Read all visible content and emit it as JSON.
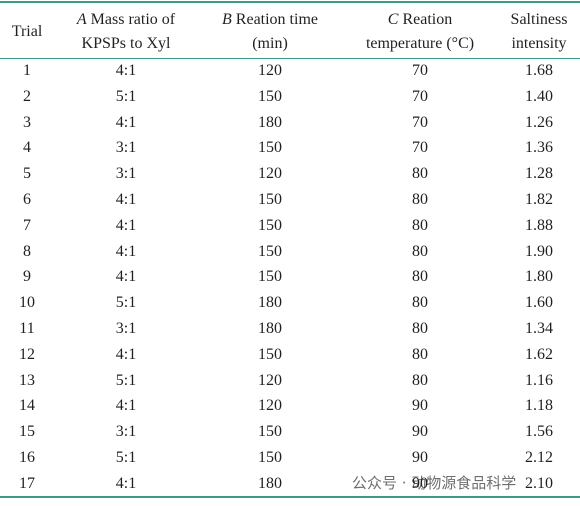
{
  "table": {
    "headers": [
      {
        "lines": [
          "Trial"
        ]
      },
      {
        "factor": "A",
        "lines": [
          "Mass ratio of",
          "KPSPs to Xyl"
        ]
      },
      {
        "factor": "B",
        "lines": [
          "Reation time",
          "(min)"
        ]
      },
      {
        "factor": "C",
        "lines": [
          "Reation",
          "temperature (°C)"
        ]
      },
      {
        "lines": [
          "Saltiness",
          "intensity"
        ]
      }
    ],
    "rows": [
      [
        1,
        "4:1",
        120,
        70,
        "1.68"
      ],
      [
        2,
        "5:1",
        150,
        70,
        "1.40"
      ],
      [
        3,
        "4:1",
        180,
        70,
        "1.26"
      ],
      [
        4,
        "3:1",
        150,
        70,
        "1.36"
      ],
      [
        5,
        "3:1",
        120,
        80,
        "1.28"
      ],
      [
        6,
        "4:1",
        150,
        80,
        "1.82"
      ],
      [
        7,
        "4:1",
        150,
        80,
        "1.88"
      ],
      [
        8,
        "4:1",
        150,
        80,
        "1.90"
      ],
      [
        9,
        "4:1",
        150,
        80,
        "1.80"
      ],
      [
        10,
        "5:1",
        180,
        80,
        "1.60"
      ],
      [
        11,
        "3:1",
        180,
        80,
        "1.34"
      ],
      [
        12,
        "4:1",
        150,
        80,
        "1.62"
      ],
      [
        13,
        "5:1",
        120,
        80,
        "1.16"
      ],
      [
        14,
        "4:1",
        120,
        90,
        "1.18"
      ],
      [
        15,
        "3:1",
        150,
        90,
        "1.56"
      ],
      [
        16,
        "5:1",
        150,
        90,
        "2.12"
      ],
      [
        17,
        "4:1",
        180,
        90,
        "2.10"
      ]
    ]
  },
  "watermark": "公众号 · 动物源食品科学"
}
